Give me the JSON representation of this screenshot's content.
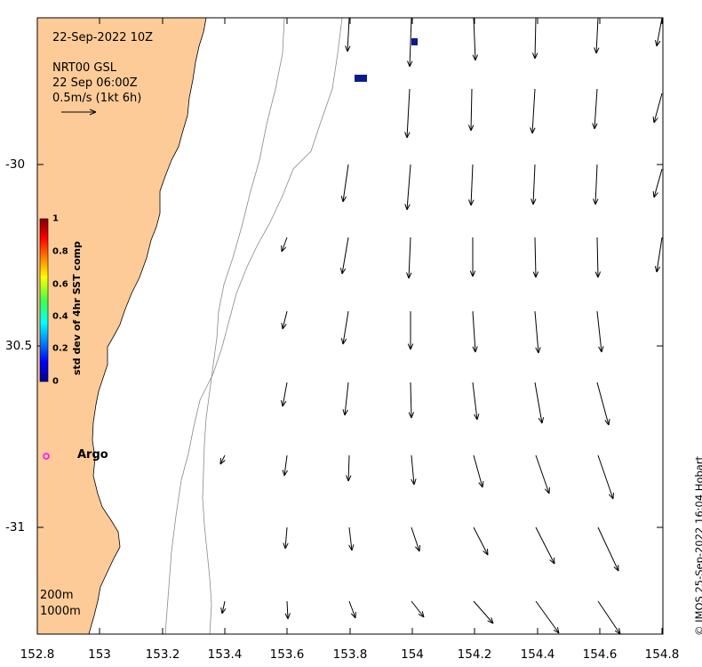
{
  "map": {
    "timestamp": "22-Sep-2022 10Z",
    "product": "NRT00 GSL",
    "valid_time": "22 Sep 06:00Z",
    "scale_label": "0.5m/s (1kt 6h)",
    "argo_label": "Argo",
    "contour_labels": [
      "200m",
      "1000m"
    ],
    "credit": "© IMOS 25-Sep-2022 16:04 Hobart",
    "x_ticks": [
      "152.8",
      "153",
      "153.2",
      "153.4",
      "153.6",
      "153.8",
      "154",
      "154.2",
      "154.4",
      "154.6",
      "154.8"
    ],
    "y_ticks": [
      "-30",
      "30.5",
      "-31"
    ],
    "land_color": "#fdcb98",
    "argo_color": "#ff00ff",
    "high_sst_cell_color": "#0a1b8c"
  },
  "colorbar": {
    "title": "std dev of 4hr SST comp",
    "ticks": [
      "1",
      "0.8",
      "0.6",
      "0.4",
      "0.2",
      "0"
    ],
    "colormap": "jet"
  }
}
